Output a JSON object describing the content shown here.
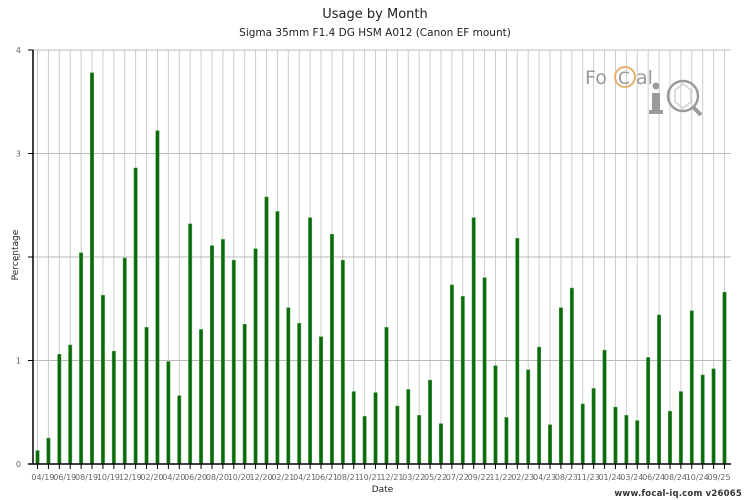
{
  "header": {
    "title": "Usage by Month",
    "subtitle": "Sigma 35mm F1.4 DG HSM A012 (Canon EF mount)"
  },
  "footer": {
    "credit": "www.focal-iq.com  v26065"
  },
  "logo": {
    "text_left": "Fo",
    "text_c": "C",
    "text_right": "al",
    "text_iq": "i"
  },
  "colors": {
    "bar": "#0b6b0b",
    "bar_edge": "#4a9a4a",
    "grid_v": "#cccccc",
    "grid_h": "#bbbbbb",
    "axis": "#000000",
    "logo_gray": "#9a9a9a",
    "logo_orange": "#e8b070"
  },
  "chart_data": {
    "type": "bar",
    "title": "Usage by Month",
    "subtitle": "Sigma 35mm F1.4 DG HSM A012 (Canon EF mount)",
    "xlabel": "Date",
    "ylabel": "Percentage",
    "ylim": [
      0,
      4
    ],
    "yticks": [
      0,
      1,
      2,
      3,
      4
    ],
    "grid": true,
    "legend": null,
    "xtick_labels": [
      "04/19",
      "06/19",
      "08/19",
      "10/19",
      "12/19",
      "02/20",
      "04/20",
      "06/20",
      "08/20",
      "10/20",
      "12/20",
      "02/21",
      "04/21",
      "06/21",
      "08/21",
      "10/21",
      "12/21",
      "03/22",
      "05/22",
      "07/22",
      "09/22",
      "11/22",
      "02/23",
      "04/23",
      "08/23",
      "11/23",
      "01/24",
      "03/24",
      "06/24",
      "08/24",
      "10/24",
      "09/25"
    ],
    "xtick_every": 2,
    "values": [
      0.13,
      0.25,
      1.06,
      1.15,
      2.04,
      3.78,
      1.63,
      1.09,
      1.99,
      2.86,
      1.32,
      3.22,
      0.99,
      0.66,
      2.32,
      1.3,
      2.11,
      2.17,
      1.97,
      1.35,
      2.08,
      2.58,
      2.44,
      1.51,
      1.36,
      2.38,
      1.23,
      2.22,
      1.97,
      0.7,
      0.46,
      0.69,
      1.32,
      0.56,
      0.72,
      0.47,
      0.81,
      0.39,
      1.73,
      1.62,
      2.38,
      1.8,
      0.95,
      0.45,
      2.18,
      0.91,
      1.13,
      0.38,
      1.51,
      1.7,
      0.58,
      0.73,
      1.1,
      0.55,
      0.47,
      0.42,
      1.03,
      1.44,
      0.51,
      0.7,
      1.48,
      0.86,
      0.92,
      1.66
    ]
  }
}
